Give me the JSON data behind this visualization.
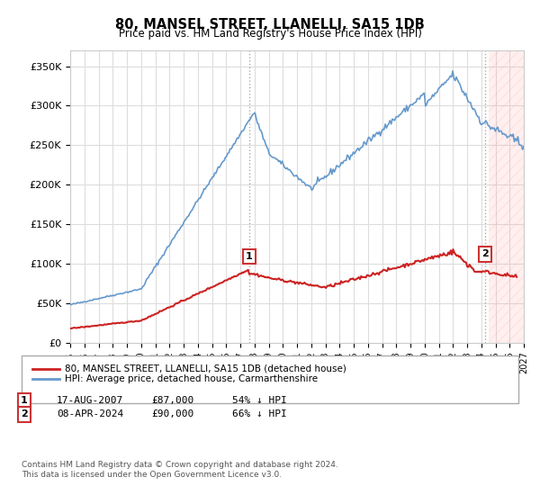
{
  "title": "80, MANSEL STREET, LLANELLI, SA15 1DB",
  "subtitle": "Price paid vs. HM Land Registry's House Price Index (HPI)",
  "ylabel_ticks": [
    "£0",
    "£50K",
    "£100K",
    "£150K",
    "£200K",
    "£250K",
    "£300K",
    "£350K"
  ],
  "ytick_values": [
    0,
    50000,
    100000,
    150000,
    200000,
    250000,
    300000,
    350000
  ],
  "ylim": [
    0,
    370000
  ],
  "xlim_start": 1995,
  "xlim_end": 2027,
  "hpi_color": "#6699cc",
  "price_color": "#cc2222",
  "marker1_x": 2007.63,
  "marker1_y": 87000,
  "marker2_x": 2024.27,
  "marker2_y": 90000,
  "marker1_label": "1",
  "marker2_label": "2",
  "vline1_x": 2007.63,
  "vline2_x": 2024.27,
  "legend_line1": "80, MANSEL STREET, LLANELLI, SA15 1DB (detached house)",
  "legend_line2": "HPI: Average price, detached house, Carmarthenshire",
  "table_row1": [
    "1",
    "17-AUG-2007",
    "£87,000",
    "54% ↓ HPI"
  ],
  "table_row2": [
    "2",
    "08-APR-2024",
    "£90,000",
    "66% ↓ HPI"
  ],
  "footer": "Contains HM Land Registry data © Crown copyright and database right 2024.\nThis data is licensed under the Open Government Licence v3.0.",
  "grid_color": "#dddddd",
  "background_color": "#ffffff",
  "hatch_color": "#ffcccc"
}
